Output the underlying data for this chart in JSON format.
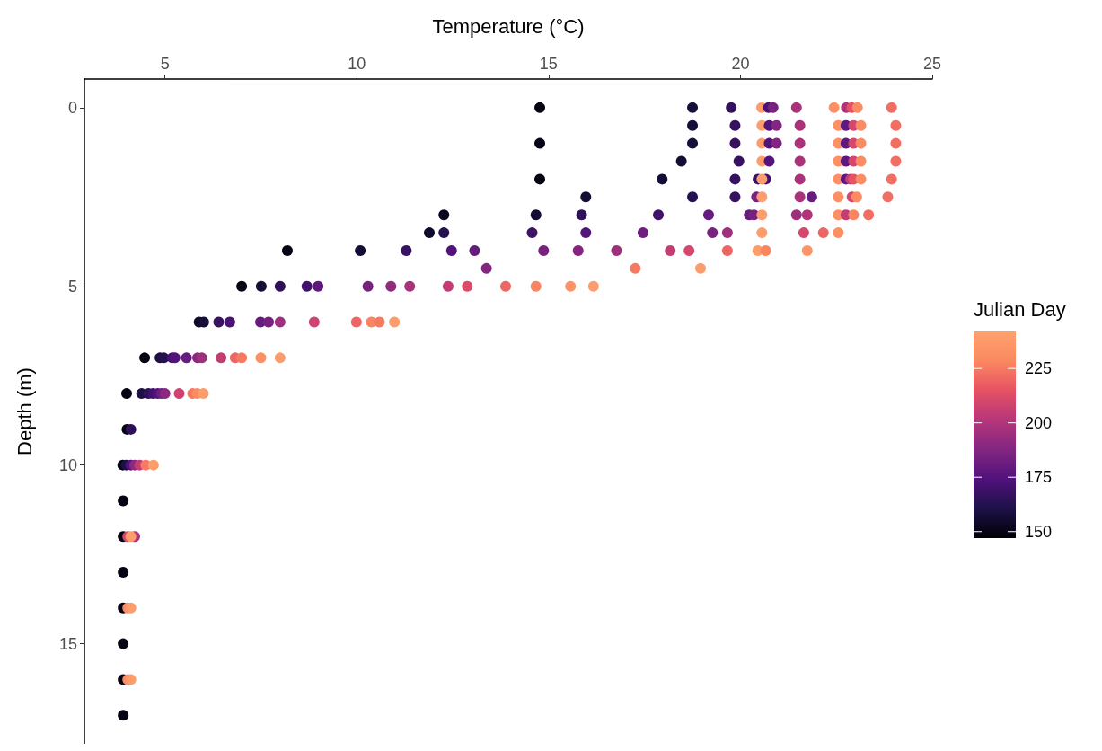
{
  "chart_data": {
    "type": "scatter",
    "xlabel": "Temperature (°C)",
    "ylabel": "Depth (m)",
    "clabel": "Julian Day",
    "xlim": [
      2.9,
      25
    ],
    "xticks": [
      5,
      10,
      15,
      20,
      25
    ],
    "ylim": [
      17.8,
      -0.8
    ],
    "yticks": [
      0,
      5,
      10,
      15
    ],
    "clim": [
      147,
      242
    ],
    "cticks": [
      150,
      175,
      200,
      225
    ],
    "grid": false,
    "marker": "circle",
    "x": [
      14.77,
      18.75,
      19.76,
      20.55,
      20.73,
      20.85,
      21.46,
      22.44,
      22.76,
      22.9,
      23.05,
      23.94,
      18.75,
      19.86,
      20.56,
      20.75,
      20.94,
      21.55,
      22.55,
      22.75,
      22.95,
      23.14,
      24.05,
      14.77,
      18.75,
      19.86,
      20.56,
      20.75,
      20.94,
      21.55,
      22.55,
      22.75,
      22.95,
      23.14,
      24.05,
      18.46,
      19.96,
      20.56,
      20.75,
      21.55,
      22.55,
      22.75,
      22.95,
      23.14,
      24.05,
      14.77,
      17.96,
      19.86,
      20.46,
      20.66,
      20.56,
      21.55,
      22.55,
      22.75,
      22.87,
      22.95,
      23.14,
      23.94,
      15.97,
      18.75,
      19.86,
      20.42,
      20.56,
      21.55,
      21.86,
      22.55,
      22.91,
      23.03,
      23.84,
      12.27,
      14.67,
      15.86,
      17.86,
      19.17,
      20.23,
      20.35,
      20.56,
      21.46,
      21.74,
      22.55,
      22.75,
      22.95,
      23.34,
      11.89,
      12.27,
      14.57,
      15.97,
      17.46,
      19.27,
      19.66,
      20.56,
      21.65,
      22.16,
      22.55,
      8.19,
      10.09,
      11.29,
      12.47,
      13.07,
      14.87,
      15.77,
      16.77,
      18.17,
      18.66,
      19.66,
      20.45,
      20.66,
      21.74,
      13.38,
      17.26,
      18.96,
      7.0,
      7.51,
      8.0,
      8.7,
      8.99,
      10.29,
      10.89,
      11.38,
      12.38,
      12.88,
      13.88,
      14.67,
      15.57,
      16.17,
      5.89,
      6.01,
      6.4,
      6.69,
      7.49,
      7.7,
      8.0,
      8.89,
      9.99,
      10.38,
      10.59,
      10.98,
      4.47,
      4.87,
      4.97,
      5.19,
      5.26,
      5.56,
      5.85,
      5.96,
      6.46,
      6.83,
      7.0,
      7.5,
      8.0,
      4.0,
      4.39,
      4.57,
      4.69,
      4.81,
      4.91,
      5.0,
      5.37,
      5.72,
      5.84,
      6.0,
      4.01,
      4.11,
      3.9,
      3.99,
      4.11,
      4.21,
      4.34,
      4.5,
      4.7,
      3.91,
      3.91,
      4.03,
      4.21,
      4.11,
      3.91,
      3.91,
      4.03,
      4.11,
      3.91,
      3.91,
      4.03,
      4.11,
      3.91
    ],
    "values": [
      0,
      0,
      0,
      0,
      0,
      0,
      0,
      0,
      0,
      0,
      0,
      0,
      0.5,
      0.5,
      0.5,
      0.5,
      0.5,
      0.5,
      0.5,
      0.5,
      0.5,
      0.5,
      0.5,
      1,
      1,
      1,
      1,
      1,
      1,
      1,
      1,
      1,
      1,
      1,
      1,
      1.5,
      1.5,
      1.5,
      1.5,
      1.5,
      1.5,
      1.5,
      1.5,
      1.5,
      1.5,
      2,
      2,
      2,
      2,
      2,
      2,
      2,
      2,
      2,
      2,
      2,
      2,
      2,
      2.5,
      2.5,
      2.5,
      2.5,
      2.5,
      2.5,
      2.5,
      2.5,
      2.5,
      2.5,
      2.5,
      3,
      3,
      3,
      3,
      3,
      3,
      3,
      3,
      3,
      3,
      3,
      3,
      3,
      3,
      3.5,
      3.5,
      3.5,
      3.5,
      3.5,
      3.5,
      3.5,
      3.5,
      3.5,
      3.5,
      3.5,
      4,
      4,
      4,
      4,
      4,
      4,
      4,
      4,
      4,
      4,
      4,
      4,
      4,
      4,
      4.5,
      4.5,
      4.5,
      5,
      5,
      5,
      5,
      5,
      5,
      5,
      5,
      5,
      5,
      5,
      5,
      5,
      5,
      6,
      6,
      6,
      6,
      6,
      6,
      6,
      6,
      6,
      6,
      6,
      6,
      7,
      7,
      7,
      7,
      7,
      7,
      7,
      7,
      7,
      7,
      7,
      7,
      7,
      8,
      8,
      8,
      8,
      8,
      8,
      8,
      8,
      8,
      8,
      8,
      9,
      9,
      10,
      10,
      10,
      10,
      10,
      10,
      10,
      11,
      12,
      12,
      12,
      12,
      13,
      14,
      14,
      14,
      15,
      16,
      16,
      16,
      17
    ],
    "cvalues": [
      150,
      158,
      167,
      240,
      172,
      185,
      198,
      232,
      200,
      215,
      230,
      222,
      158,
      167,
      240,
      175,
      188,
      198,
      232,
      178,
      210,
      230,
      222,
      150,
      158,
      167,
      240,
      175,
      188,
      198,
      232,
      178,
      210,
      230,
      222,
      157,
      167,
      240,
      175,
      198,
      232,
      178,
      210,
      230,
      222,
      150,
      157,
      167,
      168,
      170,
      240,
      198,
      232,
      178,
      205,
      215,
      230,
      222,
      157,
      163,
      167,
      185,
      240,
      198,
      180,
      232,
      210,
      230,
      222,
      152,
      157,
      165,
      170,
      180,
      180,
      185,
      240,
      195,
      200,
      232,
      205,
      228,
      222,
      155,
      163,
      170,
      175,
      182,
      185,
      195,
      240,
      210,
      220,
      232,
      150,
      157,
      168,
      175,
      180,
      185,
      188,
      195,
      205,
      210,
      220,
      240,
      228,
      235,
      188,
      225,
      240,
      150,
      158,
      165,
      170,
      178,
      185,
      192,
      198,
      205,
      212,
      220,
      228,
      235,
      240,
      155,
      158,
      168,
      172,
      180,
      185,
      195,
      208,
      220,
      228,
      225,
      240,
      150,
      160,
      163,
      170,
      175,
      180,
      190,
      195,
      205,
      220,
      225,
      232,
      240,
      150,
      160,
      165,
      170,
      175,
      182,
      190,
      208,
      225,
      230,
      240,
      150,
      165,
      150,
      160,
      175,
      190,
      205,
      225,
      240,
      150,
      150,
      210,
      200,
      240,
      150,
      150,
      230,
      240,
      150,
      150,
      230,
      240,
      150
    ]
  }
}
